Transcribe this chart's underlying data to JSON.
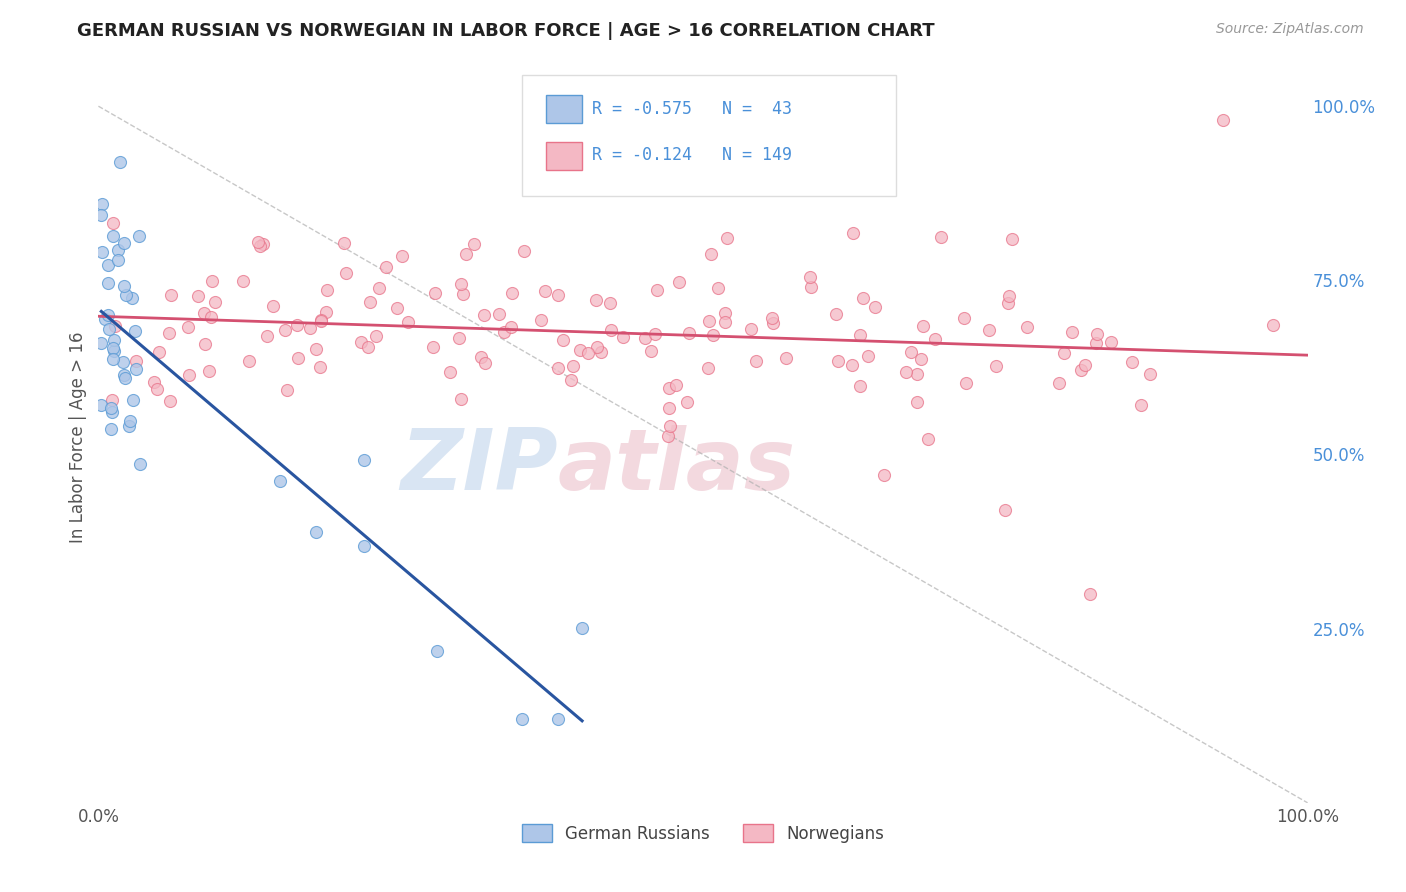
{
  "title": "GERMAN RUSSIAN VS NORWEGIAN IN LABOR FORCE | AGE > 16 CORRELATION CHART",
  "source_text": "Source: ZipAtlas.com",
  "ylabel": "In Labor Force | Age > 16",
  "legend_label1": "German Russians",
  "legend_label2": "Norwegians",
  "r1": -0.575,
  "n1": 43,
  "r2": -0.124,
  "n2": 149,
  "color_blue_edge": "#5b9bd5",
  "color_blue_fill": "#aec6e8",
  "color_pink_edge": "#e8748a",
  "color_pink_fill": "#f4b8c4",
  "color_blue_line": "#2955a0",
  "color_pink_line": "#d45070",
  "color_diag": "#b0b0b0",
  "watermark_color": "#d0dff0",
  "watermark_pink": "#f0d0d8",
  "background_color": "#ffffff",
  "grid_color": "#c8c8c8",
  "right_axis_color": "#4a90d9",
  "xlim": [
    0.0,
    1.0
  ],
  "ylim": [
    0.0,
    1.05
  ]
}
